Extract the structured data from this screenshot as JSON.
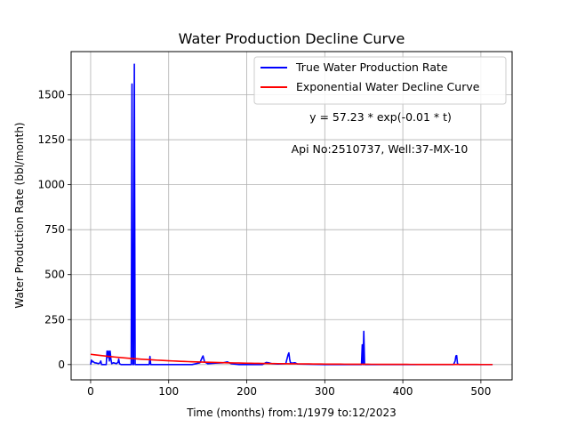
{
  "chart_data": {
    "type": "line",
    "title": "Water Production Decline Curve",
    "xlabel": "Time (months) from:1/1979 to:12/2023",
    "ylabel": "Water Production Rate (bbl/month)",
    "xlim": [
      -25,
      540
    ],
    "ylim": [
      -85,
      1740
    ],
    "xticks": [
      0,
      100,
      200,
      300,
      400,
      500
    ],
    "yticks": [
      0,
      250,
      500,
      750,
      1000,
      1250,
      1500
    ],
    "grid": true,
    "legend_position": "top-right",
    "annotations": [
      "y = 57.23 * exp(-0.01 * t)",
      "Api No:2510737, Well:37-MX-10"
    ],
    "series": [
      {
        "name": "True Water Production Rate",
        "color": "#0000ff",
        "points": [
          [
            0,
            0
          ],
          [
            1,
            25
          ],
          [
            2,
            15
          ],
          [
            3,
            18
          ],
          [
            5,
            10
          ],
          [
            8,
            8
          ],
          [
            10,
            5
          ],
          [
            12,
            10
          ],
          [
            13,
            20
          ],
          [
            14,
            0
          ],
          [
            20,
            0
          ],
          [
            21,
            75
          ],
          [
            22,
            40
          ],
          [
            23,
            75
          ],
          [
            24,
            20
          ],
          [
            25,
            75
          ],
          [
            26,
            30
          ],
          [
            27,
            5
          ],
          [
            29,
            10
          ],
          [
            31,
            8
          ],
          [
            33,
            5
          ],
          [
            35,
            12
          ],
          [
            36,
            30
          ],
          [
            37,
            5
          ],
          [
            39,
            0
          ],
          [
            52,
            0
          ],
          [
            53,
            1560
          ],
          [
            54,
            0
          ],
          [
            55,
            0
          ],
          [
            56,
            1670
          ],
          [
            57,
            0
          ],
          [
            75,
            0
          ],
          [
            76,
            45
          ],
          [
            77,
            0
          ],
          [
            130,
            0
          ],
          [
            135,
            5
          ],
          [
            140,
            10
          ],
          [
            143,
            40
          ],
          [
            144,
            48
          ],
          [
            146,
            15
          ],
          [
            150,
            5
          ],
          [
            160,
            8
          ],
          [
            170,
            10
          ],
          [
            175,
            15
          ],
          [
            180,
            5
          ],
          [
            190,
            0
          ],
          [
            220,
            0
          ],
          [
            225,
            12
          ],
          [
            228,
            10
          ],
          [
            232,
            5
          ],
          [
            240,
            3
          ],
          [
            250,
            5
          ],
          [
            253,
            55
          ],
          [
            254,
            65
          ],
          [
            255,
            30
          ],
          [
            256,
            10
          ],
          [
            258,
            8
          ],
          [
            262,
            10
          ],
          [
            265,
            3
          ],
          [
            300,
            0
          ],
          [
            347,
            0
          ],
          [
            348,
            110
          ],
          [
            349,
            0
          ],
          [
            350,
            185
          ],
          [
            351,
            0
          ],
          [
            465,
            0
          ],
          [
            467,
            20
          ],
          [
            468,
            48
          ],
          [
            469,
            50
          ],
          [
            470,
            5
          ],
          [
            472,
            0
          ],
          [
            515,
            0
          ]
        ]
      },
      {
        "name": "Exponential Water Decline Curve",
        "color": "#ff0000",
        "model": {
          "a": 57.23,
          "b": -0.01
        },
        "x_range": [
          0,
          515
        ]
      }
    ]
  }
}
